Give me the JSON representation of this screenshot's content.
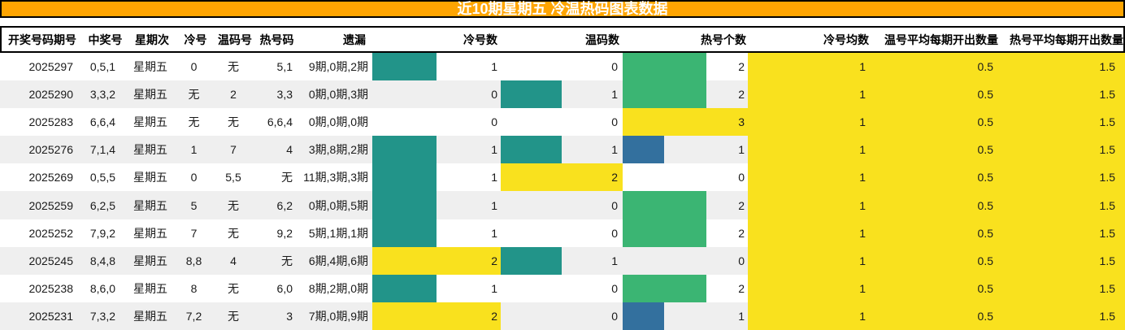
{
  "title": "近10期星期五 冷温热码图表数据",
  "columns": [
    "开奖号码期号",
    "中奖号",
    "星期次",
    "冷号",
    "温码号",
    "热号码",
    "遗漏",
    "冷号数",
    "温码数",
    "热号个数",
    "冷号均数",
    "温号平均每期开出数量",
    "热号平均每期开出数量"
  ],
  "rows": [
    {
      "period": "2025297",
      "win": "0,5,1",
      "weekday": "星期五",
      "cold": "0",
      "warm": "无",
      "hot": "5,1",
      "omission": "9期,0期,2期",
      "cold_count": 1,
      "warm_count": 0,
      "hot_count": 2,
      "cold_avg": "1",
      "warm_avg": "0.5",
      "hot_avg": "1.5"
    },
    {
      "period": "2025290",
      "win": "3,3,2",
      "weekday": "星期五",
      "cold": "无",
      "warm": "2",
      "hot": "3,3",
      "omission": "0期,0期,3期",
      "cold_count": 0,
      "warm_count": 1,
      "hot_count": 2,
      "cold_avg": "1",
      "warm_avg": "0.5",
      "hot_avg": "1.5"
    },
    {
      "period": "2025283",
      "win": "6,6,4",
      "weekday": "星期五",
      "cold": "无",
      "warm": "无",
      "hot": "6,6,4",
      "omission": "0期,0期,0期",
      "cold_count": 0,
      "warm_count": 0,
      "hot_count": 3,
      "cold_avg": "1",
      "warm_avg": "0.5",
      "hot_avg": "1.5"
    },
    {
      "period": "2025276",
      "win": "7,1,4",
      "weekday": "星期五",
      "cold": "1",
      "warm": "7",
      "hot": "4",
      "omission": "3期,8期,2期",
      "cold_count": 1,
      "warm_count": 1,
      "hot_count": 1,
      "cold_avg": "1",
      "warm_avg": "0.5",
      "hot_avg": "1.5"
    },
    {
      "period": "2025269",
      "win": "0,5,5",
      "weekday": "星期五",
      "cold": "0",
      "warm": "5,5",
      "hot": "无",
      "omission": "11期,3期,3期",
      "cold_count": 1,
      "warm_count": 2,
      "hot_count": 0,
      "cold_avg": "1",
      "warm_avg": "0.5",
      "hot_avg": "1.5"
    },
    {
      "period": "2025259",
      "win": "6,2,5",
      "weekday": "星期五",
      "cold": "5",
      "warm": "无",
      "hot": "6,2",
      "omission": "0期,0期,5期",
      "cold_count": 1,
      "warm_count": 0,
      "hot_count": 2,
      "cold_avg": "1",
      "warm_avg": "0.5",
      "hot_avg": "1.5"
    },
    {
      "period": "2025252",
      "win": "7,9,2",
      "weekday": "星期五",
      "cold": "7",
      "warm": "无",
      "hot": "9,2",
      "omission": "5期,1期,1期",
      "cold_count": 1,
      "warm_count": 0,
      "hot_count": 2,
      "cold_avg": "1",
      "warm_avg": "0.5",
      "hot_avg": "1.5"
    },
    {
      "period": "2025245",
      "win": "8,4,8",
      "weekday": "星期五",
      "cold": "8,8",
      "warm": "4",
      "hot": "无",
      "omission": "6期,4期,6期",
      "cold_count": 2,
      "warm_count": 1,
      "hot_count": 0,
      "cold_avg": "1",
      "warm_avg": "0.5",
      "hot_avg": "1.5"
    },
    {
      "period": "2025238",
      "win": "8,6,0",
      "weekday": "星期五",
      "cold": "8",
      "warm": "无",
      "hot": "6,0",
      "omission": "8期,2期,0期",
      "cold_count": 1,
      "warm_count": 0,
      "hot_count": 2,
      "cold_avg": "1",
      "warm_avg": "0.5",
      "hot_avg": "1.5"
    },
    {
      "period": "2025231",
      "win": "7,3,2",
      "weekday": "星期五",
      "cold": "7,2",
      "warm": "无",
      "hot": "3",
      "omission": "7期,0期,9期",
      "cold_count": 2,
      "warm_count": 0,
      "hot_count": 1,
      "cold_avg": "1",
      "warm_avg": "0.5",
      "hot_avg": "1.5"
    }
  ],
  "colors": {
    "title_bg": "#FFA502",
    "title_text": "#FFFFFF",
    "highlight_yellow": "#F9E11E",
    "bar_teal": "#229489",
    "bar_green": "#3BB573",
    "bar_blue": "#33709E",
    "row_stripe": "#EFEFEF",
    "border_black": "#000000"
  },
  "bar_styles": {
    "cold_count": {
      "max": 2,
      "colors": {
        "1": "#229489",
        "2": "#F9E11E"
      }
    },
    "warm_count": {
      "max": 2,
      "colors": {
        "1": "#229489",
        "2": "#F9E11E"
      }
    },
    "hot_count": {
      "max": 3,
      "colors": {
        "1": "#33709E",
        "2": "#3BB573",
        "3": "#F9E11E"
      }
    }
  },
  "chart_data": {
    "type": "table",
    "title": "近10期星期五 冷温热码图表数据",
    "columns": [
      "开奖号码期号",
      "中奖号",
      "星期次",
      "冷号",
      "温码号",
      "热号码",
      "遗漏",
      "冷号数",
      "温码数",
      "热号个数",
      "冷号均数",
      "温号平均每期开出数量",
      "热号平均每期开出数量"
    ],
    "rows_matrix": [
      [
        "2025297",
        "0,5,1",
        "星期五",
        "0",
        "无",
        "5,1",
        "9期,0期,2期",
        1,
        0,
        2,
        1,
        0.5,
        1.5
      ],
      [
        "2025290",
        "3,3,2",
        "星期五",
        "无",
        "2",
        "3,3",
        "0期,0期,3期",
        0,
        1,
        2,
        1,
        0.5,
        1.5
      ],
      [
        "2025283",
        "6,6,4",
        "星期五",
        "无",
        "无",
        "6,6,4",
        "0期,0期,0期",
        0,
        0,
        3,
        1,
        0.5,
        1.5
      ],
      [
        "2025276",
        "7,1,4",
        "星期五",
        "1",
        "7",
        "4",
        "3期,8期,2期",
        1,
        1,
        1,
        1,
        0.5,
        1.5
      ],
      [
        "2025269",
        "0,5,5",
        "星期五",
        "0",
        "5,5",
        "无",
        "11期,3期,3期",
        1,
        2,
        0,
        1,
        0.5,
        1.5
      ],
      [
        "2025259",
        "6,2,5",
        "星期五",
        "5",
        "无",
        "6,2",
        "0期,0期,5期",
        1,
        0,
        2,
        1,
        0.5,
        1.5
      ],
      [
        "2025252",
        "7,9,2",
        "星期五",
        "7",
        "无",
        "9,2",
        "5期,1期,1期",
        1,
        0,
        2,
        1,
        0.5,
        1.5
      ],
      [
        "2025245",
        "8,4,8",
        "星期五",
        "8,8",
        "4",
        "无",
        "6期,4期,6期",
        2,
        1,
        0,
        1,
        0.5,
        1.5
      ],
      [
        "2025238",
        "8,6,0",
        "星期五",
        "8",
        "无",
        "6,0",
        "8期,2期,0期",
        1,
        0,
        2,
        1,
        0.5,
        1.5
      ],
      [
        "2025231",
        "7,3,2",
        "星期五",
        "7,2",
        "无",
        "3",
        "7期,0期,9期",
        2,
        0,
        1,
        1,
        0.5,
        1.5
      ]
    ],
    "bar_columns": {
      "冷号数": {
        "max": 2,
        "value_colors": {
          "1": "#229489",
          "2": "#F9E11E"
        }
      },
      "温码数": {
        "max": 2,
        "value_colors": {
          "1": "#229489",
          "2": "#F9E11E"
        }
      },
      "热号个数": {
        "max": 3,
        "value_colors": {
          "1": "#33709E",
          "2": "#3BB573",
          "3": "#F9E11E"
        }
      }
    },
    "grid": false,
    "legend": false
  }
}
